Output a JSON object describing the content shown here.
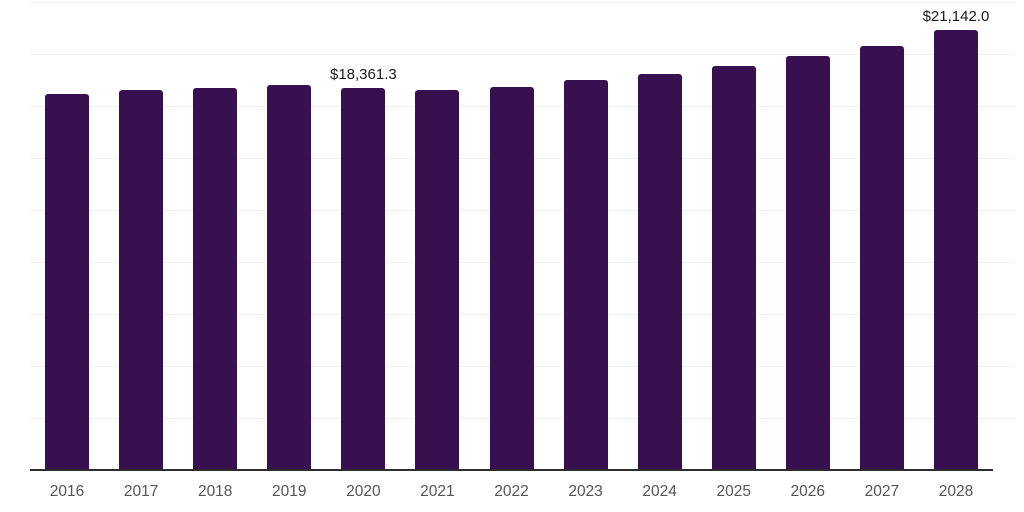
{
  "chart_data": {
    "type": "bar",
    "title": "",
    "categories": [
      "2016",
      "2017",
      "2018",
      "2019",
      "2020",
      "2021",
      "2022",
      "2023",
      "2024",
      "2025",
      "2026",
      "2027",
      "2028"
    ],
    "values": [
      18100,
      18250,
      18350,
      18500,
      18361.3,
      18270,
      18430,
      18750,
      19050,
      19430,
      19910,
      20400,
      21142
    ],
    "annotations": [
      {
        "category": "2020",
        "label": "$18,361.3"
      },
      {
        "category": "2028",
        "label": "$21,142.0"
      }
    ],
    "xlabel": "",
    "ylabel": "",
    "ylim": [
      0,
      22500
    ],
    "gridline_step": 2500,
    "grid": "horizontal-only",
    "legend": "none",
    "y_axis_tick_labels": "none"
  },
  "colors": {
    "bar": "#38104f",
    "axis_line": "#2d2d2d",
    "gridline": "#f0f0f2",
    "tick_label": "#555555",
    "data_label": "#1a1a1a",
    "background": "#ffffff"
  }
}
